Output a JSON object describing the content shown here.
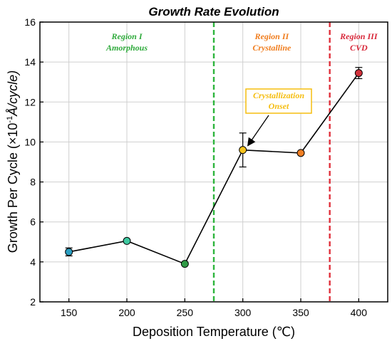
{
  "chart_data": {
    "type": "line",
    "title": "Growth Rate Evolution",
    "xlabel": "Deposition Temperature (℃)",
    "ylabel_parts": {
      "prefix": "Growth Per Cycle (×10",
      "exponent": "-1",
      "unit": "Å/cycle)"
    },
    "xlim": [
      125,
      425
    ],
    "ylim": [
      2,
      16
    ],
    "xticks": [
      150,
      200,
      250,
      300,
      350,
      400
    ],
    "yticks": [
      2,
      4,
      6,
      8,
      10,
      12,
      14,
      16
    ],
    "grid": true,
    "points": [
      {
        "x": 150,
        "y": 4.5,
        "err": 0.2,
        "color": "#2b9fc2"
      },
      {
        "x": 200,
        "y": 5.05,
        "err": 0,
        "color": "#3ec9a0"
      },
      {
        "x": 250,
        "y": 3.9,
        "err": 0,
        "color": "#2f9a45"
      },
      {
        "x": 300,
        "y": 9.6,
        "err": 0.85,
        "color": "#f6c21c"
      },
      {
        "x": 350,
        "y": 9.45,
        "err": 0,
        "color": "#f07f24"
      },
      {
        "x": 400,
        "y": 13.45,
        "err": 0.28,
        "color": "#d2323c"
      }
    ],
    "boundaries": [
      {
        "x": 275,
        "color": "#2db53c"
      },
      {
        "x": 375,
        "color": "#e0313c"
      }
    ],
    "regions": [
      {
        "line1": "Region I",
        "line2": "Amorphous",
        "color": "#2faa3c",
        "x": 200
      },
      {
        "line1": "Region II",
        "line2": "Crystalline",
        "color": "#f07d1e",
        "x": 325
      },
      {
        "line1": "Region III",
        "line2": "CVD",
        "color": "#d8283a",
        "x": 400
      }
    ],
    "annotation": {
      "line1": "Crystallization",
      "line2": "Onset",
      "color": "#f5bd0f",
      "target_x": 300,
      "target_y": 9.6
    }
  }
}
